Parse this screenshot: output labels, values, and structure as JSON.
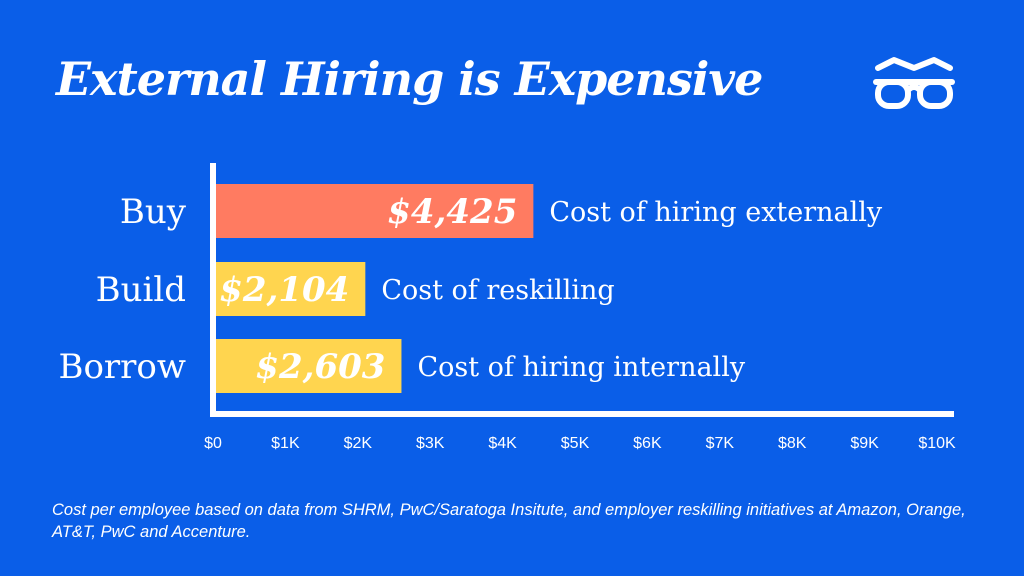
{
  "title": "External Hiring is Expensive",
  "logo": {
    "icon": "glasses-icon"
  },
  "colors": {
    "background": "#0a5ee8",
    "buy_bar": "#ff7b61",
    "build_bar": "#ffd54f",
    "borrow_bar": "#ffd54f",
    "axis": "#ffffff"
  },
  "chart_data": {
    "type": "bar",
    "orientation": "horizontal",
    "categories": [
      "Buy",
      "Build",
      "Borrow"
    ],
    "values": [
      4425,
      2104,
      2603
    ],
    "value_labels": [
      "$4,425",
      "$2,104",
      "$2,603"
    ],
    "descriptions": [
      "Cost of hiring externally",
      "Cost of reskilling",
      "Cost of hiring internally"
    ],
    "bar_colors": [
      "#ff7b61",
      "#ffd54f",
      "#ffd54f"
    ],
    "xlim": [
      0,
      10000
    ],
    "xticks": [
      0,
      1000,
      2000,
      3000,
      4000,
      5000,
      6000,
      7000,
      8000,
      9000,
      10000
    ],
    "xtick_labels": [
      "$0",
      "$1K",
      "$2K",
      "$3K",
      "$4K",
      "$5K",
      "$6K",
      "$7K",
      "$8K",
      "$9K",
      "$10K"
    ],
    "grid": false
  },
  "footnote": "Cost per employee based on data from SHRM, PwC/Saratoga Insitute, and employer reskilling initiatives at Amazon, Orange, AT&T, PwC and Accenture."
}
